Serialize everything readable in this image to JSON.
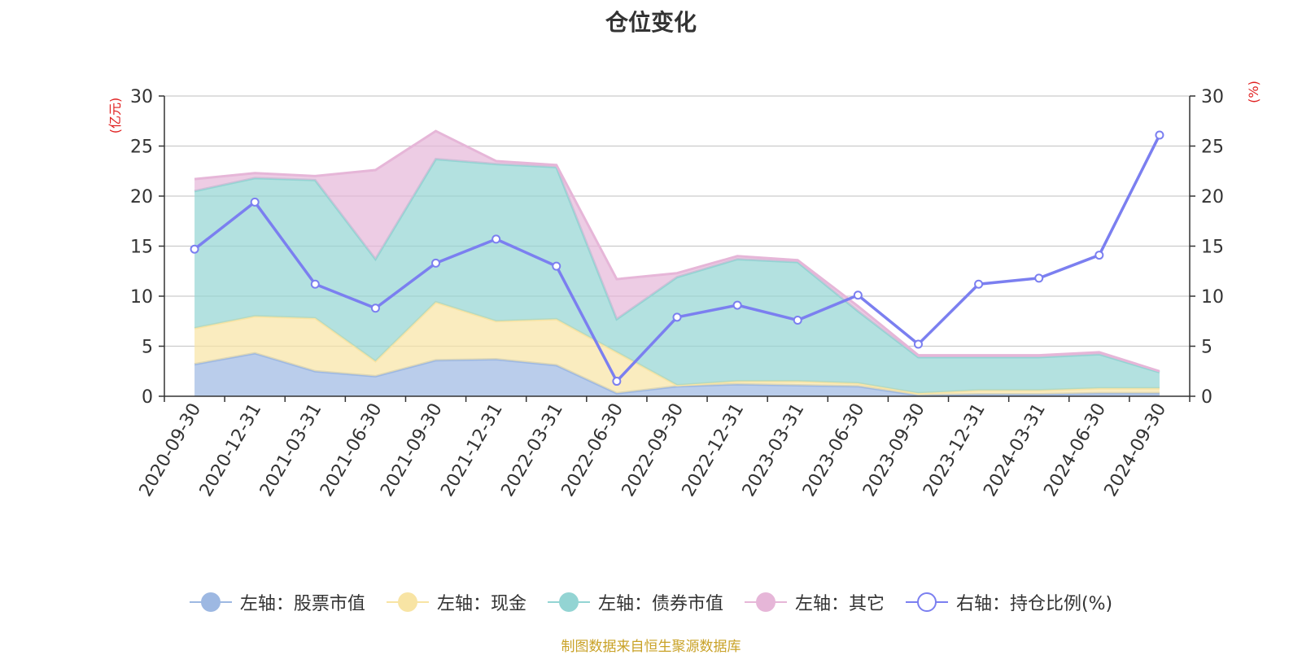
{
  "chart_data": {
    "type": "area",
    "title": "仓位变化",
    "left_axis_unit": "(亿元)",
    "right_axis_unit": "(%)",
    "left_ylim": [
      0,
      30
    ],
    "right_ylim": [
      0,
      30
    ],
    "left_ticks": [
      "0",
      "5",
      "10",
      "15",
      "20",
      "25",
      "30"
    ],
    "right_ticks": [
      "0",
      "5",
      "10",
      "15",
      "20",
      "25",
      "30"
    ],
    "categories": [
      "2020-09-30",
      "2020-12-31",
      "2021-03-31",
      "2021-06-30",
      "2021-09-30",
      "2021-12-31",
      "2022-03-31",
      "2022-06-30",
      "2022-09-30",
      "2022-12-31",
      "2023-03-31",
      "2023-06-30",
      "2023-09-30",
      "2023-12-31",
      "2024-03-31",
      "2024-06-30",
      "2024-09-30"
    ],
    "series": [
      {
        "name": "左轴：股票市值",
        "axis": "left",
        "kind": "stacked-area",
        "color": "#9db8e2",
        "values": [
          3.2,
          4.3,
          2.5,
          2.0,
          3.6,
          3.7,
          3.1,
          0.3,
          1.0,
          1.2,
          1.1,
          1.0,
          0.1,
          0.2,
          0.2,
          0.3,
          0.3
        ]
      },
      {
        "name": "左轴：现金",
        "axis": "left",
        "kind": "stacked-area",
        "color": "#f8e4a4",
        "values": [
          3.6,
          3.7,
          5.3,
          1.5,
          5.8,
          3.8,
          4.6,
          4.1,
          0.1,
          0.3,
          0.4,
          0.3,
          0.2,
          0.4,
          0.4,
          0.5,
          0.5
        ]
      },
      {
        "name": "左轴：债券市值",
        "axis": "left",
        "kind": "stacked-area",
        "color": "#93d4d3",
        "values": [
          13.7,
          13.8,
          13.8,
          10.2,
          14.3,
          15.7,
          15.2,
          3.3,
          10.8,
          12.2,
          11.9,
          7.2,
          3.6,
          3.3,
          3.3,
          3.4,
          1.6
        ]
      },
      {
        "name": "左轴：其它",
        "axis": "left",
        "kind": "stacked-area",
        "color": "#e6b6d8",
        "values": [
          1.2,
          0.5,
          0.4,
          8.9,
          2.8,
          0.3,
          0.2,
          4.0,
          0.4,
          0.3,
          0.2,
          0.5,
          0.2,
          0.2,
          0.2,
          0.2,
          0.1
        ]
      },
      {
        "name": "右轴：持仓比例(%)",
        "axis": "right",
        "kind": "line",
        "color": "#7b7ff0",
        "values": [
          14.7,
          19.4,
          11.2,
          8.8,
          13.3,
          15.7,
          13.0,
          1.5,
          7.9,
          9.1,
          7.6,
          10.1,
          5.2,
          11.2,
          11.8,
          14.1,
          26.1
        ]
      }
    ],
    "source_note": "制图数据来自恒生聚源数据库"
  },
  "colors": {
    "axis_label_red": "#e02020",
    "grid": "#cccccc",
    "axis": "#333333"
  }
}
